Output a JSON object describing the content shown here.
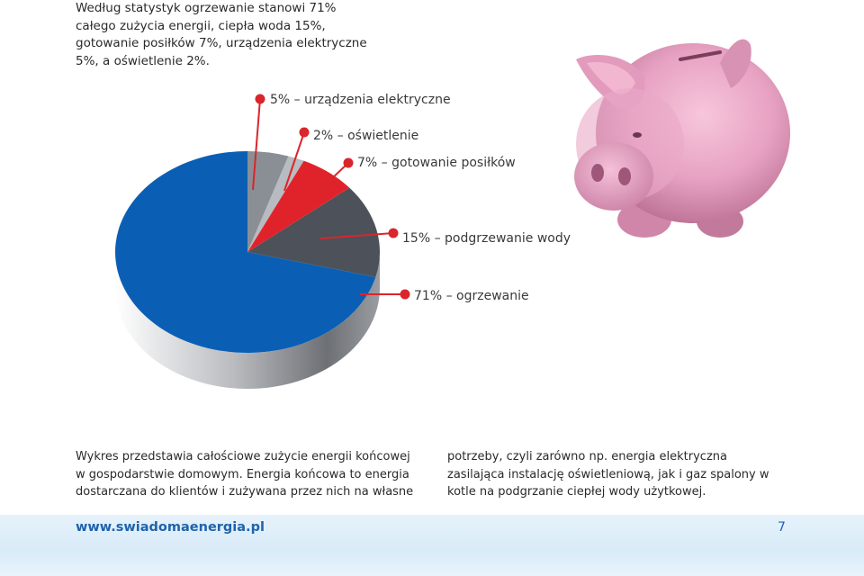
{
  "intro_text": "Według statystyk ogrzewanie stanowi 71% całego zużycia energii, ciepła woda 15%, gotowanie posiłków 7%, urządzenia elektryczne 5%, a oświetlenie 2%.",
  "chart_data": {
    "type": "pie",
    "title": "",
    "slices": [
      {
        "name": "ogrzewanie",
        "value": 71,
        "color": "#0a5fb4",
        "label": "71% – ogrzewanie"
      },
      {
        "name": "podgrzewanie wody",
        "value": 15,
        "color": "#4d5159",
        "label": "15% – podgrzewanie wody"
      },
      {
        "name": "gotowanie posiłków",
        "value": 7,
        "color": "#e0232b",
        "label": "7% – gotowanie posiłków"
      },
      {
        "name": "oświetlenie",
        "value": 2,
        "color": "#b8bbbf",
        "label": "2% – oświetlenie"
      },
      {
        "name": "urządzenia elektryczne",
        "value": 5,
        "color": "#8a8f96",
        "label": "5% – urządzenia elektryczne"
      }
    ],
    "callout_color": "#d9262c"
  },
  "caption_left": "Wykres przedstawia całościowe zużycie energii końcowej w gospodarstwie domowym. Energia końcowa to energia dostarczana do klientów i zużywana przez nich na własne",
  "caption_right": "potrzeby, czyli zarówno np. energia elektryczna zasilająca instalację oświetleniową, jak i gaz spalony w kotle na podgrzanie ciepłej wody użytkowej.",
  "footer": {
    "url": "www.swiadomaenergia.pl",
    "page": "7"
  },
  "image": {
    "icon": "piggy-bank-icon"
  }
}
